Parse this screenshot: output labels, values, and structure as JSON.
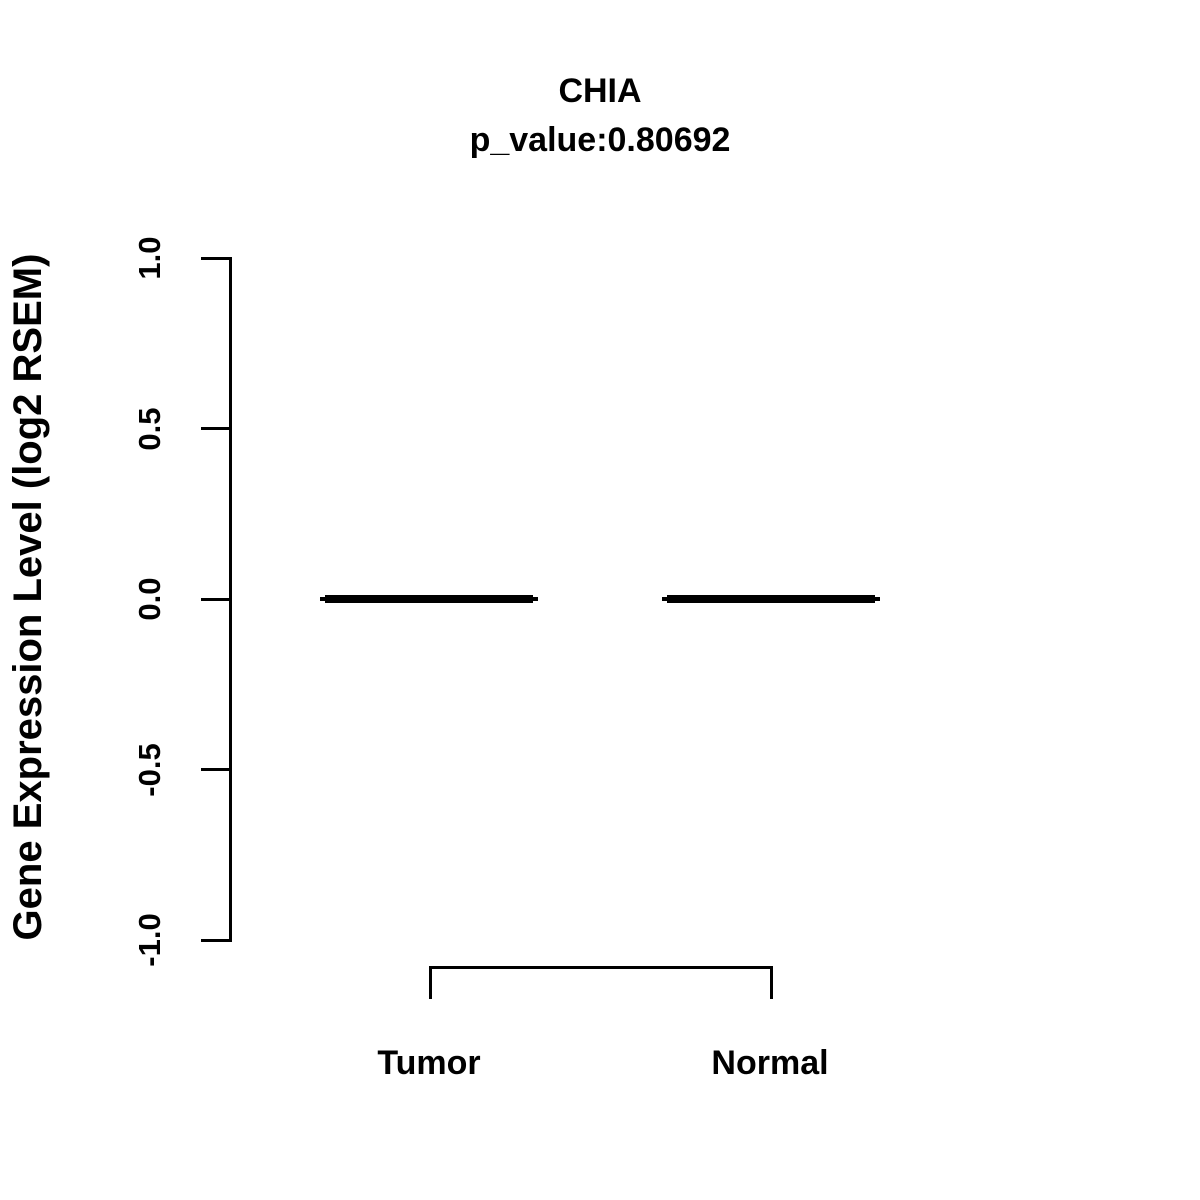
{
  "figure": {
    "background_color": "#ffffff",
    "ink_color": "#000000"
  },
  "chart_data": {
    "type": "boxplot",
    "title": "CHIA",
    "subtitle": "p_value:0.80692",
    "p_value": 0.80692,
    "gene": "CHIA",
    "ylabel": "Gene Expression Level (log2 RSEM)",
    "xlabel": "",
    "categories": [
      "Tumor",
      "Normal"
    ],
    "series": [
      {
        "name": "Tumor",
        "median": 0.0,
        "q1": 0.0,
        "q3": 0.0,
        "whisker_low": 0.0,
        "whisker_high": 0.0
      },
      {
        "name": "Normal",
        "median": 0.0,
        "q1": 0.0,
        "q3": 0.0,
        "whisker_low": 0.0,
        "whisker_high": 0.0
      }
    ],
    "ylim": [
      -1.0,
      1.0
    ],
    "yticks": [
      {
        "value": 1.0,
        "label": "1.0"
      },
      {
        "value": 0.5,
        "label": "0.5"
      },
      {
        "value": 0.0,
        "label": "0.0"
      },
      {
        "value": -0.5,
        "label": "-0.5"
      },
      {
        "value": -1.0,
        "label": "-1.0"
      }
    ],
    "grid": false,
    "legend": null,
    "comparison_bracket": {
      "from": "Tumor",
      "to": "Normal"
    }
  }
}
